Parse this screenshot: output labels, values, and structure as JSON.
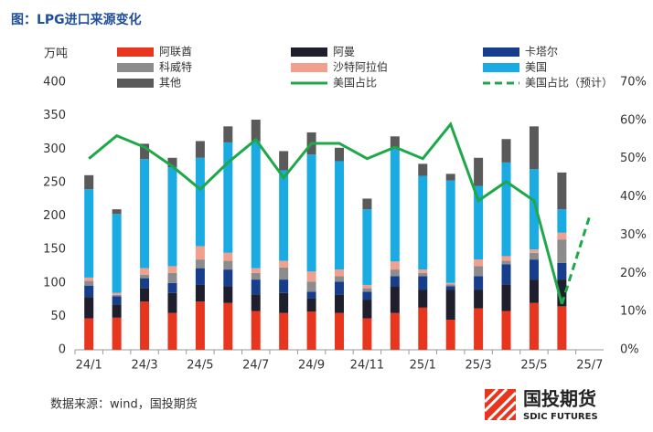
{
  "chart_data": {
    "type": "bar",
    "title": "图：LPG进口来源变化",
    "ylabel": "万吨",
    "source": "数据来源：wind，国投期货",
    "categories": [
      "24/1",
      null,
      "24/3",
      null,
      "24/5",
      null,
      "24/7",
      null,
      "24/9",
      null,
      "24/11",
      null,
      "25/1",
      null,
      "25/3",
      null,
      "25/5",
      null,
      "25/7"
    ],
    "ylim": [
      0,
      400
    ],
    "yticks": [
      0,
      50,
      100,
      150,
      200,
      250,
      300,
      350,
      400
    ],
    "y2lim": [
      0,
      70
    ],
    "y2ticks": [
      {
        "value": 0,
        "label": "0%"
      },
      {
        "value": 10,
        "label": "10%"
      },
      {
        "value": 20,
        "label": "20%"
      },
      {
        "value": 30,
        "label": "30%"
      },
      {
        "value": 40,
        "label": "40%"
      },
      {
        "value": 50,
        "label": "50%"
      },
      {
        "value": 60,
        "label": "60%"
      },
      {
        "value": 70,
        "label": "70%"
      }
    ],
    "stacked": true,
    "series": [
      {
        "name": "阿联酋",
        "color": "#e8351e",
        "values": [
          47,
          48,
          72,
          55,
          72,
          70,
          58,
          55,
          57,
          55,
          47,
          55,
          63,
          45,
          62,
          58,
          70,
          65,
          null
        ]
      },
      {
        "name": "阿曼",
        "color": "#1e1e2c",
        "values": [
          32,
          20,
          20,
          30,
          25,
          25,
          25,
          30,
          20,
          27,
          28,
          40,
          27,
          45,
          28,
          40,
          35,
          40,
          null
        ]
      },
      {
        "name": "卡塔尔",
        "color": "#163e8c",
        "values": [
          17,
          12,
          15,
          15,
          25,
          25,
          22,
          20,
          10,
          20,
          12,
          15,
          20,
          5,
          20,
          30,
          30,
          25,
          null
        ]
      },
      {
        "name": "科威特",
        "color": "#8c8c8c",
        "values": [
          7,
          2,
          5,
          15,
          13,
          13,
          10,
          18,
          15,
          8,
          5,
          10,
          5,
          3,
          15,
          5,
          10,
          35,
          null
        ]
      },
      {
        "name": "沙特阿拉伯",
        "color": "#f2a08e",
        "values": [
          5,
          3,
          10,
          10,
          20,
          12,
          7,
          10,
          15,
          10,
          5,
          12,
          5,
          2,
          10,
          7,
          5,
          10,
          null
        ]
      },
      {
        "name": "美国",
        "color": "#1aabe3",
        "values": [
          132,
          118,
          163,
          148,
          132,
          165,
          190,
          135,
          175,
          162,
          113,
          168,
          140,
          153,
          110,
          140,
          120,
          35,
          null
        ]
      },
      {
        "name": "其他",
        "color": "#5a5a5a",
        "values": [
          21,
          7,
          23,
          14,
          25,
          24,
          32,
          29,
          33,
          20,
          16,
          19,
          18,
          10,
          42,
          35,
          64,
          55,
          null
        ]
      },
      {
        "name": "美国占比",
        "color": "#1fa84a",
        "type": "line",
        "axis": "y2",
        "values": [
          50,
          56,
          53,
          48,
          42,
          49,
          55,
          45,
          54,
          54,
          50,
          53,
          50,
          59,
          39,
          44,
          39,
          12,
          null
        ]
      },
      {
        "name": "美国占比（预计）",
        "color": "#1fa84a",
        "type": "line",
        "axis": "y2",
        "dashed": true,
        "values": [
          null,
          null,
          null,
          null,
          null,
          null,
          null,
          null,
          null,
          null,
          null,
          null,
          null,
          null,
          null,
          null,
          null,
          12,
          35
        ]
      }
    ]
  },
  "logo": {
    "name": "国投期货",
    "subtitle": "SDIC FUTURES"
  }
}
